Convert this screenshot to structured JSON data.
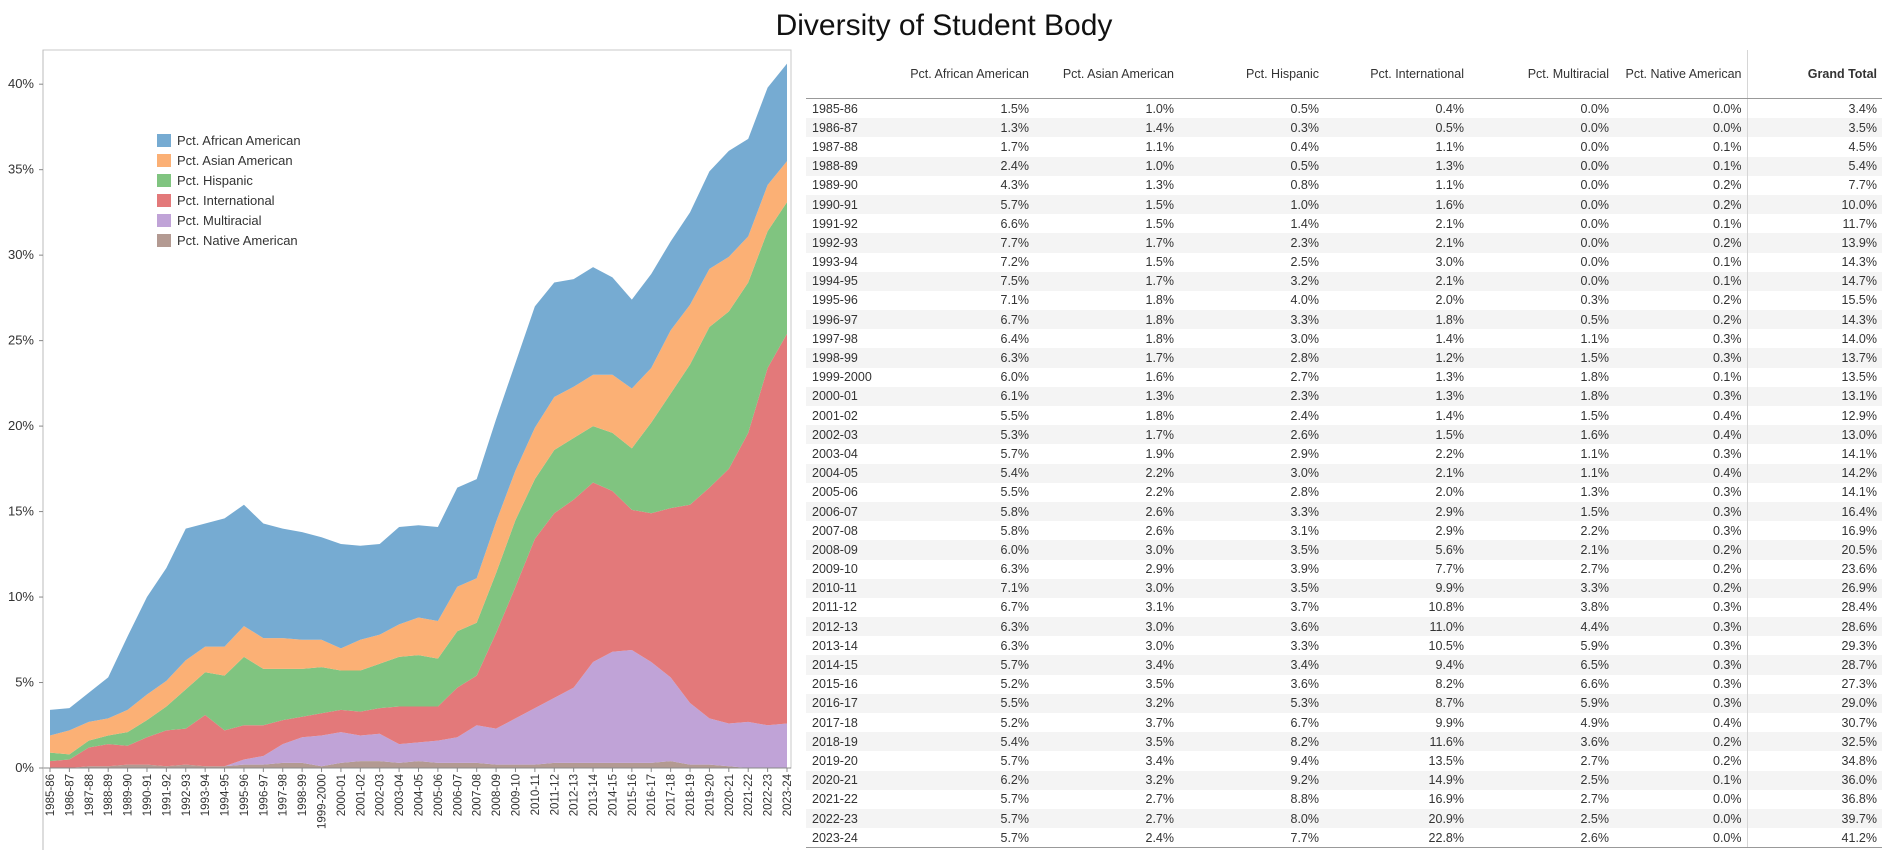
{
  "title": "Diversity of Student Body",
  "chart_data": {
    "type": "area",
    "stacked": true,
    "title": "Diversity of Student Body",
    "xlabel": "",
    "ylabel": "",
    "ylim": [
      0,
      42
    ],
    "y_ticks": [
      "0%",
      "5%",
      "10%",
      "15%",
      "20%",
      "25%",
      "30%",
      "35%",
      "40%"
    ],
    "y_tick_values": [
      0,
      5,
      10,
      15,
      20,
      25,
      30,
      35,
      40
    ],
    "grid": false,
    "legend_position": "top-left",
    "categories": [
      "1985-86",
      "1986-87",
      "1987-88",
      "1988-89",
      "1989-90",
      "1990-91",
      "1991-92",
      "1992-93",
      "1993-94",
      "1994-95",
      "1995-96",
      "1996-97",
      "1997-98",
      "1998-99",
      "1999-2000",
      "2000-01",
      "2001-02",
      "2002-03",
      "2003-04",
      "2004-05",
      "2005-06",
      "2006-07",
      "2007-08",
      "2008-09",
      "2009-10",
      "2010-11",
      "2011-12",
      "2012-13",
      "2013-14",
      "2014-15",
      "2015-16",
      "2016-17",
      "2017-18",
      "2018-19",
      "2019-20",
      "2020-21",
      "2021-22",
      "2022-23",
      "2023-24"
    ],
    "series": [
      {
        "name": "Pct. Native American",
        "color": "#b39a92",
        "values": [
          0.0,
          0.0,
          0.1,
          0.1,
          0.2,
          0.2,
          0.1,
          0.2,
          0.1,
          0.1,
          0.2,
          0.2,
          0.3,
          0.3,
          0.1,
          0.3,
          0.4,
          0.4,
          0.3,
          0.4,
          0.3,
          0.3,
          0.3,
          0.2,
          0.2,
          0.2,
          0.3,
          0.3,
          0.3,
          0.3,
          0.3,
          0.3,
          0.4,
          0.2,
          0.2,
          0.1,
          0.0,
          0.0,
          0.0
        ]
      },
      {
        "name": "Pct. Multiracial",
        "color": "#c0a3d7",
        "values": [
          0.0,
          0.0,
          0.0,
          0.0,
          0.0,
          0.0,
          0.0,
          0.0,
          0.0,
          0.0,
          0.3,
          0.5,
          1.1,
          1.5,
          1.8,
          1.8,
          1.5,
          1.6,
          1.1,
          1.1,
          1.3,
          1.5,
          2.2,
          2.1,
          2.7,
          3.3,
          3.8,
          4.4,
          5.9,
          6.5,
          6.6,
          5.9,
          4.9,
          3.6,
          2.7,
          2.5,
          2.7,
          2.5,
          2.6
        ]
      },
      {
        "name": "Pct. International",
        "color": "#e3797a",
        "values": [
          0.4,
          0.5,
          1.1,
          1.3,
          1.1,
          1.6,
          2.1,
          2.1,
          3.0,
          2.1,
          2.0,
          1.8,
          1.4,
          1.2,
          1.3,
          1.3,
          1.4,
          1.5,
          2.2,
          2.1,
          2.0,
          2.9,
          2.9,
          5.6,
          7.7,
          9.9,
          10.8,
          11.0,
          10.5,
          9.4,
          8.2,
          8.7,
          9.9,
          11.6,
          13.5,
          14.9,
          16.9,
          20.9,
          22.8
        ]
      },
      {
        "name": "Pct. Hispanic",
        "color": "#80c480",
        "values": [
          0.5,
          0.3,
          0.4,
          0.5,
          0.8,
          1.0,
          1.4,
          2.3,
          2.5,
          3.2,
          4.0,
          3.3,
          3.0,
          2.8,
          2.7,
          2.3,
          2.4,
          2.6,
          2.9,
          3.0,
          2.8,
          3.3,
          3.1,
          3.5,
          3.9,
          3.5,
          3.7,
          3.6,
          3.3,
          3.4,
          3.6,
          5.3,
          6.7,
          8.2,
          9.4,
          9.2,
          8.8,
          8.0,
          7.7
        ]
      },
      {
        "name": "Pct. Asian American",
        "color": "#fbb075",
        "values": [
          1.0,
          1.4,
          1.1,
          1.0,
          1.3,
          1.5,
          1.5,
          1.7,
          1.5,
          1.7,
          1.8,
          1.8,
          1.8,
          1.7,
          1.6,
          1.3,
          1.8,
          1.7,
          1.9,
          2.2,
          2.2,
          2.6,
          2.6,
          3.0,
          2.9,
          3.0,
          3.1,
          3.0,
          3.0,
          3.4,
          3.5,
          3.2,
          3.7,
          3.5,
          3.4,
          3.2,
          2.7,
          2.7,
          2.4
        ]
      },
      {
        "name": "Pct. African American",
        "color": "#76abd2",
        "values": [
          1.5,
          1.3,
          1.7,
          2.4,
          4.3,
          5.7,
          6.6,
          7.7,
          7.2,
          7.5,
          7.1,
          6.7,
          6.4,
          6.3,
          6.0,
          6.1,
          5.5,
          5.3,
          5.7,
          5.4,
          5.5,
          5.8,
          5.8,
          6.0,
          6.3,
          7.1,
          6.7,
          6.3,
          6.3,
          5.7,
          5.2,
          5.5,
          5.2,
          5.4,
          5.7,
          6.2,
          5.7,
          5.7,
          5.7
        ]
      }
    ],
    "legend": [
      {
        "name": "Pct. African American",
        "color": "#76abd2"
      },
      {
        "name": "Pct. Asian American",
        "color": "#fbb075"
      },
      {
        "name": "Pct. Hispanic",
        "color": "#80c480"
      },
      {
        "name": "Pct. International",
        "color": "#e3797a"
      },
      {
        "name": "Pct. Multiracial",
        "color": "#c0a3d7"
      },
      {
        "name": "Pct. Native American",
        "color": "#b39a92"
      }
    ]
  },
  "table": {
    "columns": [
      "Pct. African American",
      "Pct. Asian American",
      "Pct. Hispanic",
      "Pct. International",
      "Pct. Multiracial",
      "Pct. Native American",
      "Grand Total"
    ],
    "rows": [
      [
        "1985-86",
        "1.5%",
        "1.0%",
        "0.5%",
        "0.4%",
        "0.0%",
        "0.0%",
        "3.4%"
      ],
      [
        "1986-87",
        "1.3%",
        "1.4%",
        "0.3%",
        "0.5%",
        "0.0%",
        "0.0%",
        "3.5%"
      ],
      [
        "1987-88",
        "1.7%",
        "1.1%",
        "0.4%",
        "1.1%",
        "0.0%",
        "0.1%",
        "4.5%"
      ],
      [
        "1988-89",
        "2.4%",
        "1.0%",
        "0.5%",
        "1.3%",
        "0.0%",
        "0.1%",
        "5.4%"
      ],
      [
        "1989-90",
        "4.3%",
        "1.3%",
        "0.8%",
        "1.1%",
        "0.0%",
        "0.2%",
        "7.7%"
      ],
      [
        "1990-91",
        "5.7%",
        "1.5%",
        "1.0%",
        "1.6%",
        "0.0%",
        "0.2%",
        "10.0%"
      ],
      [
        "1991-92",
        "6.6%",
        "1.5%",
        "1.4%",
        "2.1%",
        "0.0%",
        "0.1%",
        "11.7%"
      ],
      [
        "1992-93",
        "7.7%",
        "1.7%",
        "2.3%",
        "2.1%",
        "0.0%",
        "0.2%",
        "13.9%"
      ],
      [
        "1993-94",
        "7.2%",
        "1.5%",
        "2.5%",
        "3.0%",
        "0.0%",
        "0.1%",
        "14.3%"
      ],
      [
        "1994-95",
        "7.5%",
        "1.7%",
        "3.2%",
        "2.1%",
        "0.0%",
        "0.1%",
        "14.7%"
      ],
      [
        "1995-96",
        "7.1%",
        "1.8%",
        "4.0%",
        "2.0%",
        "0.3%",
        "0.2%",
        "15.5%"
      ],
      [
        "1996-97",
        "6.7%",
        "1.8%",
        "3.3%",
        "1.8%",
        "0.5%",
        "0.2%",
        "14.3%"
      ],
      [
        "1997-98",
        "6.4%",
        "1.8%",
        "3.0%",
        "1.4%",
        "1.1%",
        "0.3%",
        "14.0%"
      ],
      [
        "1998-99",
        "6.3%",
        "1.7%",
        "2.8%",
        "1.2%",
        "1.5%",
        "0.3%",
        "13.7%"
      ],
      [
        "1999-2000",
        "6.0%",
        "1.6%",
        "2.7%",
        "1.3%",
        "1.8%",
        "0.1%",
        "13.5%"
      ],
      [
        "2000-01",
        "6.1%",
        "1.3%",
        "2.3%",
        "1.3%",
        "1.8%",
        "0.3%",
        "13.1%"
      ],
      [
        "2001-02",
        "5.5%",
        "1.8%",
        "2.4%",
        "1.4%",
        "1.5%",
        "0.4%",
        "12.9%"
      ],
      [
        "2002-03",
        "5.3%",
        "1.7%",
        "2.6%",
        "1.5%",
        "1.6%",
        "0.4%",
        "13.0%"
      ],
      [
        "2003-04",
        "5.7%",
        "1.9%",
        "2.9%",
        "2.2%",
        "1.1%",
        "0.3%",
        "14.1%"
      ],
      [
        "2004-05",
        "5.4%",
        "2.2%",
        "3.0%",
        "2.1%",
        "1.1%",
        "0.4%",
        "14.2%"
      ],
      [
        "2005-06",
        "5.5%",
        "2.2%",
        "2.8%",
        "2.0%",
        "1.3%",
        "0.3%",
        "14.1%"
      ],
      [
        "2006-07",
        "5.8%",
        "2.6%",
        "3.3%",
        "2.9%",
        "1.5%",
        "0.3%",
        "16.4%"
      ],
      [
        "2007-08",
        "5.8%",
        "2.6%",
        "3.1%",
        "2.9%",
        "2.2%",
        "0.3%",
        "16.9%"
      ],
      [
        "2008-09",
        "6.0%",
        "3.0%",
        "3.5%",
        "5.6%",
        "2.1%",
        "0.2%",
        "20.5%"
      ],
      [
        "2009-10",
        "6.3%",
        "2.9%",
        "3.9%",
        "7.7%",
        "2.7%",
        "0.2%",
        "23.6%"
      ],
      [
        "2010-11",
        "7.1%",
        "3.0%",
        "3.5%",
        "9.9%",
        "3.3%",
        "0.2%",
        "26.9%"
      ],
      [
        "2011-12",
        "6.7%",
        "3.1%",
        "3.7%",
        "10.8%",
        "3.8%",
        "0.3%",
        "28.4%"
      ],
      [
        "2012-13",
        "6.3%",
        "3.0%",
        "3.6%",
        "11.0%",
        "4.4%",
        "0.3%",
        "28.6%"
      ],
      [
        "2013-14",
        "6.3%",
        "3.0%",
        "3.3%",
        "10.5%",
        "5.9%",
        "0.3%",
        "29.3%"
      ],
      [
        "2014-15",
        "5.7%",
        "3.4%",
        "3.4%",
        "9.4%",
        "6.5%",
        "0.3%",
        "28.7%"
      ],
      [
        "2015-16",
        "5.2%",
        "3.5%",
        "3.6%",
        "8.2%",
        "6.6%",
        "0.3%",
        "27.3%"
      ],
      [
        "2016-17",
        "5.5%",
        "3.2%",
        "5.3%",
        "8.7%",
        "5.9%",
        "0.3%",
        "29.0%"
      ],
      [
        "2017-18",
        "5.2%",
        "3.7%",
        "6.7%",
        "9.9%",
        "4.9%",
        "0.4%",
        "30.7%"
      ],
      [
        "2018-19",
        "5.4%",
        "3.5%",
        "8.2%",
        "11.6%",
        "3.6%",
        "0.2%",
        "32.5%"
      ],
      [
        "2019-20",
        "5.7%",
        "3.4%",
        "9.4%",
        "13.5%",
        "2.7%",
        "0.2%",
        "34.8%"
      ],
      [
        "2020-21",
        "6.2%",
        "3.2%",
        "9.2%",
        "14.9%",
        "2.5%",
        "0.1%",
        "36.0%"
      ],
      [
        "2021-22",
        "5.7%",
        "2.7%",
        "8.8%",
        "16.9%",
        "2.7%",
        "0.0%",
        "36.8%"
      ],
      [
        "2022-23",
        "5.7%",
        "2.7%",
        "8.0%",
        "20.9%",
        "2.5%",
        "0.0%",
        "39.7%"
      ],
      [
        "2023-24",
        "5.7%",
        "2.4%",
        "7.7%",
        "22.8%",
        "2.6%",
        "0.0%",
        "41.2%"
      ]
    ]
  }
}
